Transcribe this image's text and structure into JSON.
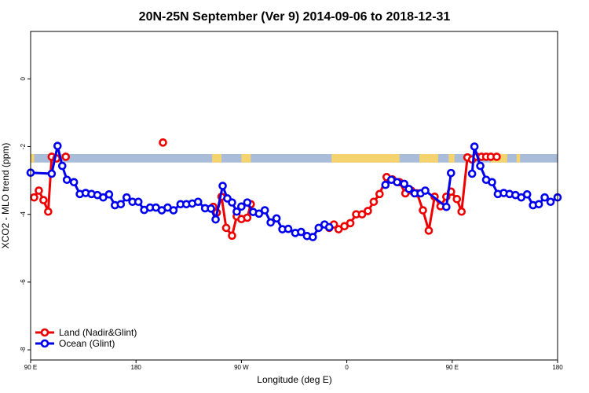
{
  "chart_data": {
    "type": "line",
    "title": "20N-25N September (Ver 9)   2014-09-06 to 2018-12-31",
    "xlabel": "Longitude (deg E)",
    "ylabel": "XCO2 - MLO trend (ppm)",
    "xlim": [
      90,
      540
    ],
    "ylim": [
      -8.3,
      1.4
    ],
    "x_ticks": [
      {
        "value": 90,
        "label": "90 E"
      },
      {
        "value": 180,
        "label": "180"
      },
      {
        "value": 270,
        "label": "90 W"
      },
      {
        "value": 360,
        "label": "0"
      },
      {
        "value": 450,
        "label": "90 E"
      },
      {
        "value": 540,
        "label": "180"
      }
    ],
    "y_ticks": [
      {
        "value": 0,
        "label": "0"
      },
      {
        "value": -2,
        "label": "-2"
      },
      {
        "value": -4,
        "label": "-4"
      },
      {
        "value": -6,
        "label": "-6"
      },
      {
        "value": -8,
        "label": "-8"
      }
    ],
    "grid": false,
    "legend_position": "bottom-left",
    "legend": [
      {
        "label": "Land (Nadir&Glint)",
        "color": "#ee0000"
      },
      {
        "label": "Ocean (Glint)",
        "color": "#0000ee"
      }
    ],
    "land_mask_strip": {
      "y_top": -2.22,
      "y_bottom": -2.47,
      "ocean_color": "#a9bcd9",
      "land_color": "#f5d36e"
    },
    "land_segments": [
      [
        90,
        93
      ],
      [
        112,
        116
      ],
      [
        245,
        253
      ],
      [
        270,
        278
      ],
      [
        347,
        405
      ],
      [
        422,
        438
      ],
      [
        447,
        452
      ],
      [
        483,
        497
      ],
      [
        505,
        508
      ]
    ],
    "series": [
      {
        "name": "Land (Nadir&Glint)",
        "color": "#ee0000",
        "segments": [
          {
            "x": [
              93,
              97,
              101,
              105,
              108,
              112
            ],
            "y": [
              -3.5,
              -3.3,
              -3.58,
              -3.92,
              -2.3,
              -2.35
            ]
          },
          {
            "x": [
              120
            ],
            "y": [
              -2.3
            ]
          },
          {
            "x": [
              203
            ],
            "y": [
              -1.88
            ]
          },
          {
            "x": [
              246,
              249,
              253,
              257,
              262,
              266,
              270,
              275,
              278
            ],
            "y": [
              -3.78,
              -3.95,
              -3.48,
              -4.4,
              -4.63,
              -4.06,
              -4.14,
              -4.1,
              -3.7
            ]
          },
          {
            "x": [
              345,
              349,
              353,
              358,
              363,
              368,
              373,
              378,
              383,
              388,
              394,
              399,
              405,
              410,
              415,
              420,
              425,
              430,
              435,
              440,
              445,
              449,
              454,
              458,
              463,
              467,
              471,
              475,
              479,
              483,
              488
            ],
            "y": [
              -4.4,
              -4.3,
              -4.44,
              -4.35,
              -4.26,
              -4.0,
              -4.0,
              -3.9,
              -3.63,
              -3.4,
              -2.9,
              -2.97,
              -3.05,
              -3.38,
              -3.3,
              -3.38,
              -3.88,
              -4.48,
              -3.48,
              -3.76,
              -3.48,
              -3.33,
              -3.55,
              -3.92,
              -2.32,
              -2.38,
              -2.3,
              -2.3,
              -2.3,
              -2.3,
              -2.3
            ]
          }
        ]
      },
      {
        "name": "Ocean (Glint)",
        "color": "#0000ee",
        "segments": [
          {
            "x": [
              90,
              108,
              113,
              117,
              121,
              127,
              132,
              137,
              142,
              147,
              152,
              157,
              162,
              167,
              172,
              177,
              182,
              187,
              192,
              197,
              202,
              207,
              212,
              218,
              223,
              228,
              233,
              239,
              244,
              248,
              254,
              258,
              262,
              266,
              270,
              275,
              280,
              285,
              290,
              295,
              300,
              305,
              310,
              316,
              321,
              326,
              331,
              336,
              341,
              345
            ],
            "y": [
              -2.77,
              -2.8,
              -1.98,
              -2.57,
              -2.98,
              -3.05,
              -3.4,
              -3.37,
              -3.4,
              -3.43,
              -3.5,
              -3.41,
              -3.73,
              -3.7,
              -3.5,
              -3.63,
              -3.63,
              -3.87,
              -3.8,
              -3.8,
              -3.88,
              -3.8,
              -3.88,
              -3.7,
              -3.7,
              -3.68,
              -3.63,
              -3.82,
              -3.83,
              -4.15,
              -3.16,
              -3.53,
              -3.65,
              -3.92,
              -3.77,
              -3.65,
              -3.93,
              -3.98,
              -3.88,
              -4.24,
              -4.12,
              -4.44,
              -4.43,
              -4.55,
              -4.52,
              -4.64,
              -4.67,
              -4.4,
              -4.3,
              -4.38
            ]
          },
          {
            "x": [
              393,
              398,
              403,
              409,
              413,
              418,
              423,
              427,
              445,
              449
            ],
            "y": [
              -3.13,
              -2.98,
              -3.05,
              -3.1,
              -3.25,
              -3.38,
              -3.38,
              -3.3,
              -3.78,
              -2.78
            ]
          },
          {
            "x": [
              467,
              469,
              474,
              479,
              484,
              489,
              494,
              499,
              504,
              509,
              514,
              519,
              524,
              529,
              534,
              540
            ],
            "y": [
              -2.8,
              -2.0,
              -2.57,
              -2.98,
              -3.05,
              -3.4,
              -3.37,
              -3.4,
              -3.43,
              -3.5,
              -3.41,
              -3.73,
              -3.7,
              -3.5,
              -3.63,
              -3.5
            ]
          }
        ]
      }
    ]
  }
}
